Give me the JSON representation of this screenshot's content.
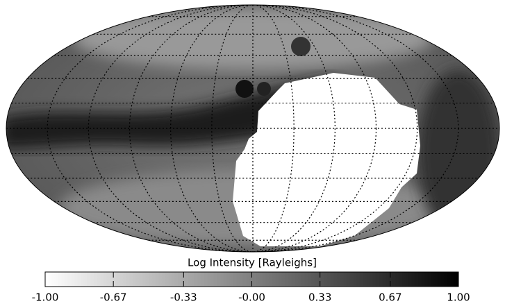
{
  "chart_data": {
    "type": "colorbar",
    "title": "Log Intensity [Rayleighs]",
    "xlim": [
      -1,
      1
    ],
    "xticks": [
      {
        "value": -1,
        "label": "-1.00"
      },
      {
        "value": -0.67,
        "label": "-0.67"
      },
      {
        "value": -0.33,
        "label": "-0.33"
      },
      {
        "value": 0,
        "label": "-0.00"
      },
      {
        "value": 0.33,
        "label": "0.33"
      },
      {
        "value": 0.67,
        "label": "0.67"
      },
      {
        "value": 1,
        "label": "1.00"
      }
    ]
  }
}
